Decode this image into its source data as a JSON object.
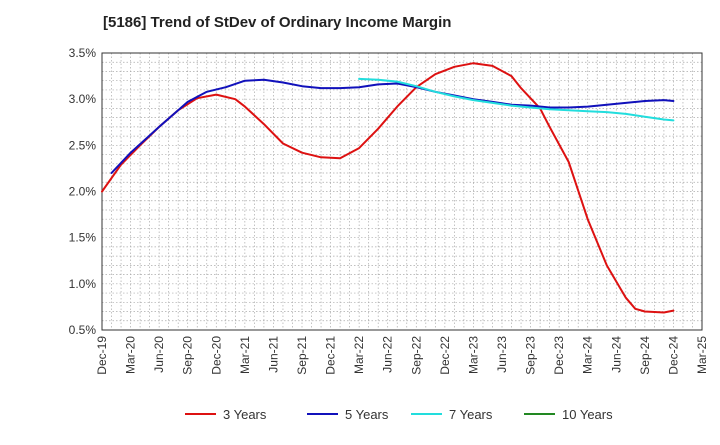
{
  "chart_data": {
    "type": "line",
    "title": "[5186]  Trend of StDev of Ordinary Income Margin",
    "xlabel": "",
    "ylabel": "",
    "ylim": [
      0.5,
      3.5
    ],
    "y_ticks": [
      0.5,
      1.0,
      1.5,
      2.0,
      2.5,
      3.0,
      3.5
    ],
    "y_tick_labels": [
      "0.5%",
      "1.0%",
      "1.5%",
      "2.0%",
      "2.5%",
      "3.0%",
      "3.5%"
    ],
    "x_tick_labels": [
      "Dec-19",
      "Mar-20",
      "Jun-20",
      "Sep-20",
      "Dec-20",
      "Mar-21",
      "Jun-21",
      "Sep-21",
      "Dec-21",
      "Mar-22",
      "Jun-22",
      "Sep-22",
      "Dec-22",
      "Mar-23",
      "Jun-23",
      "Sep-23",
      "Dec-23",
      "Mar-24",
      "Jun-24",
      "Sep-24",
      "Dec-24",
      "Mar-25"
    ],
    "grid": true,
    "legend_position": "bottom",
    "series": [
      {
        "name": "3 Years",
        "color": "#dd1111",
        "points": [
          [
            "Dec-19",
            2.0
          ],
          [
            "Feb-20",
            2.29
          ],
          [
            "Apr-20",
            2.5
          ],
          [
            "Jun-20",
            2.7
          ],
          [
            "Aug-20",
            2.88
          ],
          [
            "Oct-20",
            3.01
          ],
          [
            "Dec-20",
            3.05
          ],
          [
            "Feb-21",
            3.0
          ],
          [
            "Mar-21",
            2.92
          ],
          [
            "May-21",
            2.73
          ],
          [
            "Jul-21",
            2.52
          ],
          [
            "Sep-21",
            2.42
          ],
          [
            "Nov-21",
            2.37
          ],
          [
            "Jan-22",
            2.36
          ],
          [
            "Mar-22",
            2.47
          ],
          [
            "May-22",
            2.68
          ],
          [
            "Jul-22",
            2.92
          ],
          [
            "Sep-22",
            3.13
          ],
          [
            "Nov-22",
            3.27
          ],
          [
            "Jan-23",
            3.35
          ],
          [
            "Mar-23",
            3.39
          ],
          [
            "May-23",
            3.36
          ],
          [
            "Jul-23",
            3.25
          ],
          [
            "Aug-23",
            3.12
          ],
          [
            "Oct-23",
            2.9
          ],
          [
            "Nov-23",
            2.7
          ],
          [
            "Jan-24",
            2.32
          ],
          [
            "Mar-24",
            1.7
          ],
          [
            "May-24",
            1.2
          ],
          [
            "Jul-24",
            0.85
          ],
          [
            "Aug-24",
            0.73
          ],
          [
            "Sep-24",
            0.7
          ],
          [
            "Nov-24",
            0.69
          ],
          [
            "Dec-24",
            0.71
          ]
        ]
      },
      {
        "name": "5 Years",
        "color": "#1111bb",
        "points": [
          [
            "Jan-20",
            2.2
          ],
          [
            "Mar-20",
            2.42
          ],
          [
            "Jun-20",
            2.7
          ],
          [
            "Sep-20",
            2.97
          ],
          [
            "Nov-20",
            3.08
          ],
          [
            "Jan-21",
            3.13
          ],
          [
            "Mar-21",
            3.2
          ],
          [
            "May-21",
            3.21
          ],
          [
            "Jul-21",
            3.18
          ],
          [
            "Sep-21",
            3.14
          ],
          [
            "Nov-21",
            3.12
          ],
          [
            "Jan-22",
            3.12
          ],
          [
            "Mar-22",
            3.13
          ],
          [
            "May-22",
            3.16
          ],
          [
            "Jul-22",
            3.17
          ],
          [
            "Sep-22",
            3.13
          ],
          [
            "Nov-22",
            3.08
          ],
          [
            "Jan-23",
            3.04
          ],
          [
            "Mar-23",
            3.0
          ],
          [
            "May-23",
            2.97
          ],
          [
            "Jul-23",
            2.94
          ],
          [
            "Sep-23",
            2.93
          ],
          [
            "Nov-23",
            2.91
          ],
          [
            "Jan-24",
            2.91
          ],
          [
            "Mar-24",
            2.92
          ],
          [
            "May-24",
            2.94
          ],
          [
            "Jul-24",
            2.96
          ],
          [
            "Sep-24",
            2.98
          ],
          [
            "Nov-24",
            2.99
          ],
          [
            "Dec-24",
            2.98
          ]
        ]
      },
      {
        "name": "7 Years",
        "color": "#22dddd",
        "points": [
          [
            "Mar-22",
            3.22
          ],
          [
            "May-22",
            3.21
          ],
          [
            "Jul-22",
            3.19
          ],
          [
            "Sep-22",
            3.14
          ],
          [
            "Nov-22",
            3.08
          ],
          [
            "Jan-23",
            3.03
          ],
          [
            "Mar-23",
            2.99
          ],
          [
            "May-23",
            2.96
          ],
          [
            "Jul-23",
            2.93
          ],
          [
            "Sep-23",
            2.91
          ],
          [
            "Nov-23",
            2.89
          ],
          [
            "Jan-24",
            2.88
          ],
          [
            "Mar-24",
            2.87
          ],
          [
            "May-24",
            2.86
          ],
          [
            "Jul-24",
            2.84
          ],
          [
            "Sep-24",
            2.81
          ],
          [
            "Nov-24",
            2.78
          ],
          [
            "Dec-24",
            2.77
          ]
        ]
      },
      {
        "name": "10 Years",
        "color": "#228822",
        "points": []
      }
    ]
  }
}
